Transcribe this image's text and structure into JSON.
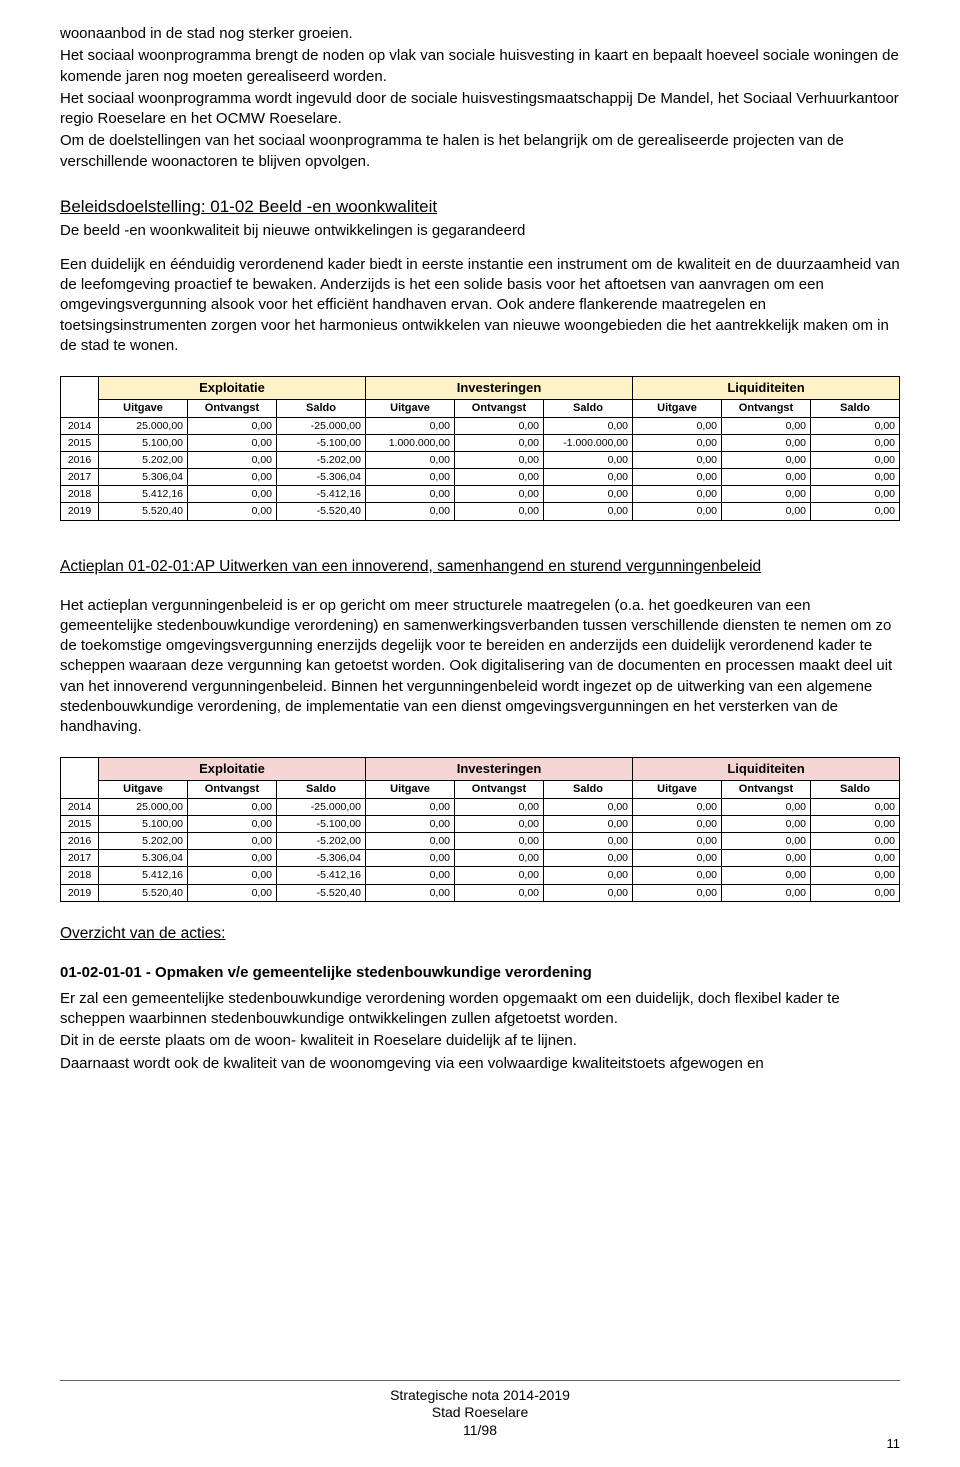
{
  "intro_paragraphs": [
    "woonaanbod in de stad nog sterker groeien.",
    "Het sociaal woonprogramma brengt de noden op vlak van sociale huisvesting in kaart en bepaalt hoeveel sociale woningen de komende jaren nog moeten gerealiseerd worden.",
    "Het sociaal woonprogramma wordt ingevuld door de sociale huisvestingsmaatschappij De Mandel, het Sociaal Verhuurkantoor regio Roeselare en het OCMW Roeselare.",
    "Om de doelstellingen van het sociaal woonprogramma te halen is het belangrijk om de gerealiseerde projecten van de verschillende woonactoren te blijven opvolgen."
  ],
  "beleids_title": "Beleidsdoelstelling: 01-02 Beeld -en woonkwaliteit",
  "beleids_subtitle": "De beeld -en woonkwaliteit bij nieuwe ontwikkelingen is gegarandeerd",
  "beleids_body": "Een duidelijk en éénduidig verordenend kader biedt in eerste instantie een instrument om de kwaliteit en de duurzaamheid van de leefomgeving proactief te bewaken. Anderzijds is het een solide basis voor het aftoetsen van aanvragen om een omgevingsvergunning alsook voor het efficiënt handhaven ervan. Ook andere flankerende maatregelen en toetsingsinstrumenten zorgen voor het harmonieus ontwikkelen van nieuwe woongebieden die het aantrekkelijk maken om in de stad te wonen.",
  "table_groups": [
    "Exploitatie",
    "Investeringen",
    "Liquiditeiten"
  ],
  "table_subheaders": [
    "Uitgave",
    "Ontvangst",
    "Saldo",
    "Uitgave",
    "Ontvangst",
    "Saldo",
    "Uitgave",
    "Ontvangst",
    "Saldo"
  ],
  "table1_header_bg": "#fff2c6",
  "table2_header_bg": "#f6d5d5",
  "table1_rows": [
    [
      "2014",
      "25.000,00",
      "0,00",
      "-25.000,00",
      "0,00",
      "0,00",
      "0,00",
      "0,00",
      "0,00",
      "0,00"
    ],
    [
      "2015",
      "5.100,00",
      "0,00",
      "-5.100,00",
      "1.000.000,00",
      "0,00",
      "-1.000.000,00",
      "0,00",
      "0,00",
      "0,00"
    ],
    [
      "2016",
      "5.202,00",
      "0,00",
      "-5.202,00",
      "0,00",
      "0,00",
      "0,00",
      "0,00",
      "0,00",
      "0,00"
    ],
    [
      "2017",
      "5.306,04",
      "0,00",
      "-5.306,04",
      "0,00",
      "0,00",
      "0,00",
      "0,00",
      "0,00",
      "0,00"
    ],
    [
      "2018",
      "5.412,16",
      "0,00",
      "-5.412,16",
      "0,00",
      "0,00",
      "0,00",
      "0,00",
      "0,00",
      "0,00"
    ],
    [
      "2019",
      "5.520,40",
      "0,00",
      "-5.520,40",
      "0,00",
      "0,00",
      "0,00",
      "0,00",
      "0,00",
      "0,00"
    ]
  ],
  "actieplan_title": "Actieplan 01-02-01:AP Uitwerken van een innoverend, samenhangend en sturend vergunningenbeleid",
  "actieplan_body": "Het actieplan vergunningenbeleid is er op gericht om meer structurele maatregelen (o.a. het goedkeuren van een gemeentelijke stedenbouwkundige verordening) en samenwerkingsverbanden tussen verschillende diensten te nemen om zo de toekomstige omgevingsvergunning enerzijds degelijk voor te bereiden en anderzijds een duidelijk verordenend kader te scheppen waaraan deze vergunning kan getoetst worden. Ook digitalisering van de documenten en processen maakt deel uit van het innoverend vergunningenbeleid. Binnen het vergunningenbeleid wordt ingezet op de uitwerking van een algemene stedenbouwkundige verordening, de implementatie van een dienst omgevingsvergunningen en het versterken van de handhaving.",
  "table2_rows": [
    [
      "2014",
      "25.000,00",
      "0,00",
      "-25.000,00",
      "0,00",
      "0,00",
      "0,00",
      "0,00",
      "0,00",
      "0,00"
    ],
    [
      "2015",
      "5.100,00",
      "0,00",
      "-5.100,00",
      "0,00",
      "0,00",
      "0,00",
      "0,00",
      "0,00",
      "0,00"
    ],
    [
      "2016",
      "5.202,00",
      "0,00",
      "-5.202,00",
      "0,00",
      "0,00",
      "0,00",
      "0,00",
      "0,00",
      "0,00"
    ],
    [
      "2017",
      "5.306,04",
      "0,00",
      "-5.306,04",
      "0,00",
      "0,00",
      "0,00",
      "0,00",
      "0,00",
      "0,00"
    ],
    [
      "2018",
      "5.412,16",
      "0,00",
      "-5.412,16",
      "0,00",
      "0,00",
      "0,00",
      "0,00",
      "0,00",
      "0,00"
    ],
    [
      "2019",
      "5.520,40",
      "0,00",
      "-5.520,40",
      "0,00",
      "0,00",
      "0,00",
      "0,00",
      "0,00",
      "0,00"
    ]
  ],
  "overzicht_title": "Overzicht van de acties:",
  "actie_code_title": "01-02-01-01 - Opmaken v/e gemeentelijke stedenbouwkundige verordening",
  "actie_body_lines": [
    "Er zal een gemeentelijke stedenbouwkundige verordening worden opgemaakt om een duidelijk, doch flexibel kader te scheppen waarbinnen stedenbouwkundige ontwikkelingen zullen afgetoetst worden.",
    "Dit in de eerste plaats om de woon- kwaliteit in Roeselare duidelijk af te lijnen.",
    "Daarnaast wordt ook de kwaliteit van de woonomgeving via een volwaardige kwaliteitstoets afgewogen en"
  ],
  "footer_lines": [
    "Strategische nota 2014-2019",
    "Stad Roeselare",
    "11/98"
  ],
  "page_num": "11"
}
